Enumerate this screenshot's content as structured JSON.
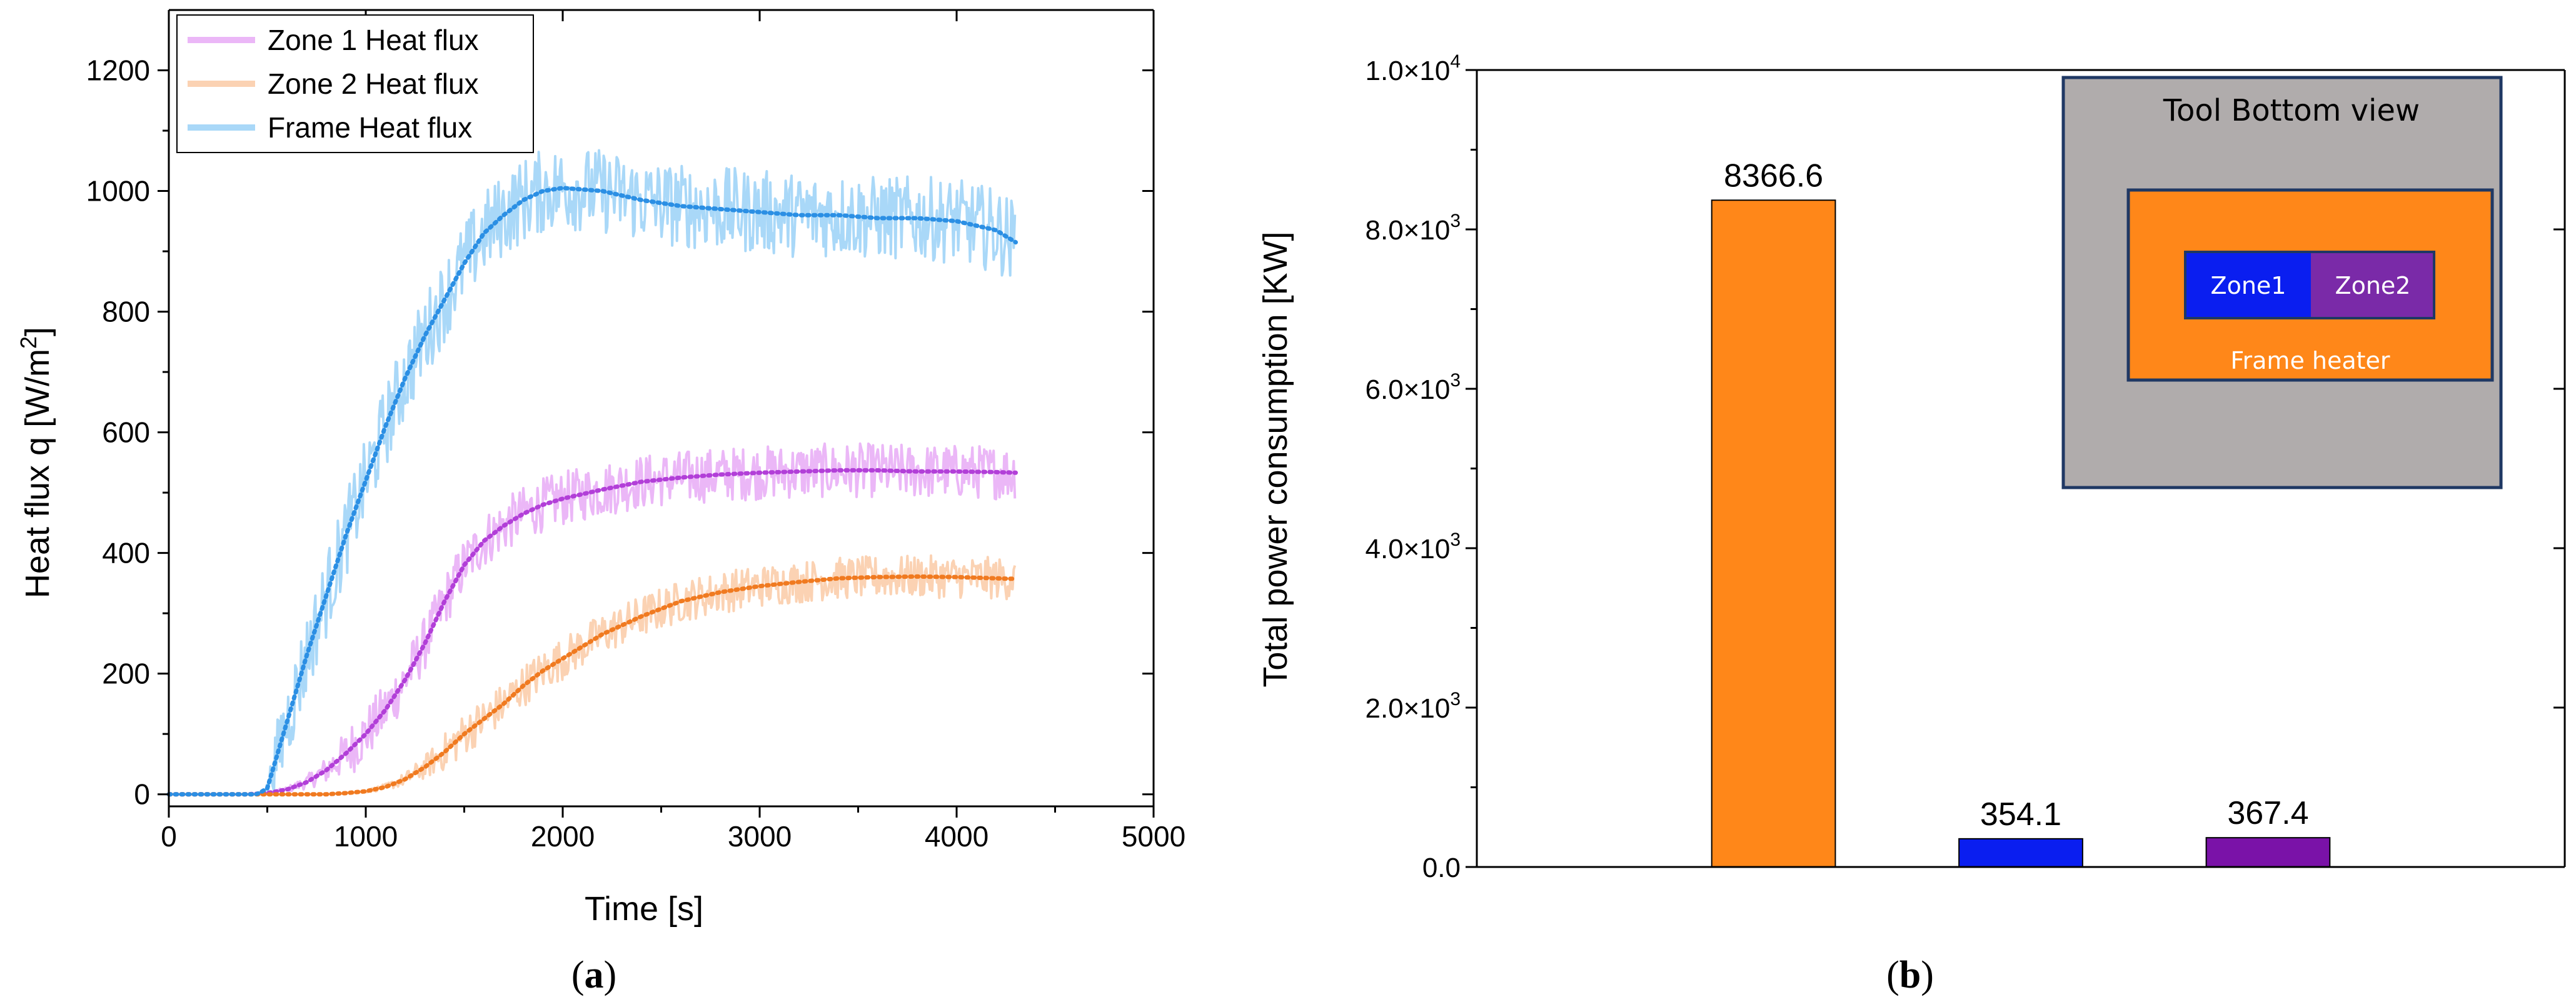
{
  "chart_data": [
    {
      "type": "line",
      "panel_label": "a",
      "xlabel": "Time [s]",
      "ylabel": "Heat flux q [W/m",
      "ylabel_sup": "2",
      "ylabel_close": "]",
      "xlim": [
        0,
        5000
      ],
      "ylim": [
        -20,
        1300
      ],
      "x_ticks": [
        0,
        1000,
        2000,
        3000,
        4000,
        5000
      ],
      "y_ticks": [
        0,
        200,
        400,
        600,
        800,
        1000,
        1200
      ],
      "grid": false,
      "legend_position": "top-left",
      "series": [
        {
          "name": "Zone 1 Heat flux",
          "raw_color": "#ebb7f7",
          "fit_color": "#b23fd8",
          "noise_amplitude": 45,
          "x": [
            0,
            400,
            500,
            600,
            700,
            800,
            900,
            1000,
            1100,
            1200,
            1300,
            1400,
            1500,
            1600,
            1700,
            1800,
            1900,
            2000,
            2200,
            2400,
            2600,
            2800,
            3000,
            3200,
            3400,
            3600,
            3800,
            4000,
            4200,
            4300
          ],
          "y": [
            0,
            0,
            2,
            8,
            20,
            40,
            68,
            100,
            140,
            190,
            250,
            320,
            380,
            420,
            445,
            465,
            480,
            490,
            505,
            518,
            525,
            530,
            533,
            535,
            537,
            537,
            535,
            535,
            534,
            533
          ]
        },
        {
          "name": "Zone 2 Heat flux",
          "raw_color": "#fbd2b3",
          "fit_color": "#f07a20",
          "noise_amplitude": 35,
          "x": [
            0,
            800,
            900,
            1000,
            1100,
            1200,
            1300,
            1400,
            1500,
            1600,
            1700,
            1800,
            1900,
            2000,
            2100,
            2200,
            2400,
            2600,
            2800,
            3000,
            3200,
            3400,
            3600,
            3800,
            4000,
            4200,
            4300
          ],
          "y": [
            0,
            0,
            2,
            5,
            12,
            25,
            45,
            70,
            100,
            125,
            150,
            180,
            205,
            225,
            245,
            265,
            295,
            320,
            335,
            345,
            352,
            358,
            360,
            361,
            360,
            358,
            357
          ]
        },
        {
          "name": "Frame Heat flux",
          "raw_color": "#a9d8f8",
          "fit_color": "#2b8fe4",
          "noise_amplitude": 70,
          "x": [
            0,
            450,
            500,
            600,
            700,
            800,
            900,
            1000,
            1100,
            1200,
            1300,
            1400,
            1500,
            1600,
            1700,
            1800,
            1900,
            2000,
            2200,
            2400,
            2600,
            2800,
            3000,
            3200,
            3400,
            3600,
            3800,
            4000,
            4200,
            4300
          ],
          "y": [
            0,
            0,
            10,
            120,
            230,
            330,
            430,
            520,
            610,
            690,
            760,
            820,
            880,
            930,
            960,
            985,
            1000,
            1005,
            1000,
            985,
            975,
            970,
            965,
            960,
            960,
            955,
            955,
            950,
            935,
            915
          ]
        }
      ]
    },
    {
      "type": "bar",
      "panel_label": "b",
      "ylabel": "Total power consumption [KW]",
      "ylim": [
        0,
        10000
      ],
      "y_ticks": [
        {
          "value": 0,
          "mant": "0.0",
          "exp": ""
        },
        {
          "value": 2000,
          "mant": "2.0×10",
          "exp": "3"
        },
        {
          "value": 4000,
          "mant": "4.0×10",
          "exp": "3"
        },
        {
          "value": 6000,
          "mant": "6.0×10",
          "exp": "3"
        },
        {
          "value": 8000,
          "mant": "8.0×10",
          "exp": "3"
        },
        {
          "value": 10000,
          "mant": "1.0×10",
          "exp": "4"
        }
      ],
      "grid": false,
      "categories": [
        "",
        "",
        ""
      ],
      "values": [
        8366.6,
        354.1,
        367.4
      ],
      "value_labels": [
        "8366.6",
        "354.1",
        "367.4"
      ],
      "colors": [
        "#ff8719",
        "#0a1ef0",
        "#7a12a8"
      ],
      "inset": {
        "title": "Tool Bottom view",
        "zone1": "Zone1",
        "zone2": "Zone2",
        "frame": "Frame heater",
        "bg_color": "#b0acac",
        "frame_color": "#ff8719",
        "zone1_color": "#0a1ef0",
        "zone2_color": "#7a2aa8",
        "border_color": "#1f3864"
      }
    }
  ]
}
